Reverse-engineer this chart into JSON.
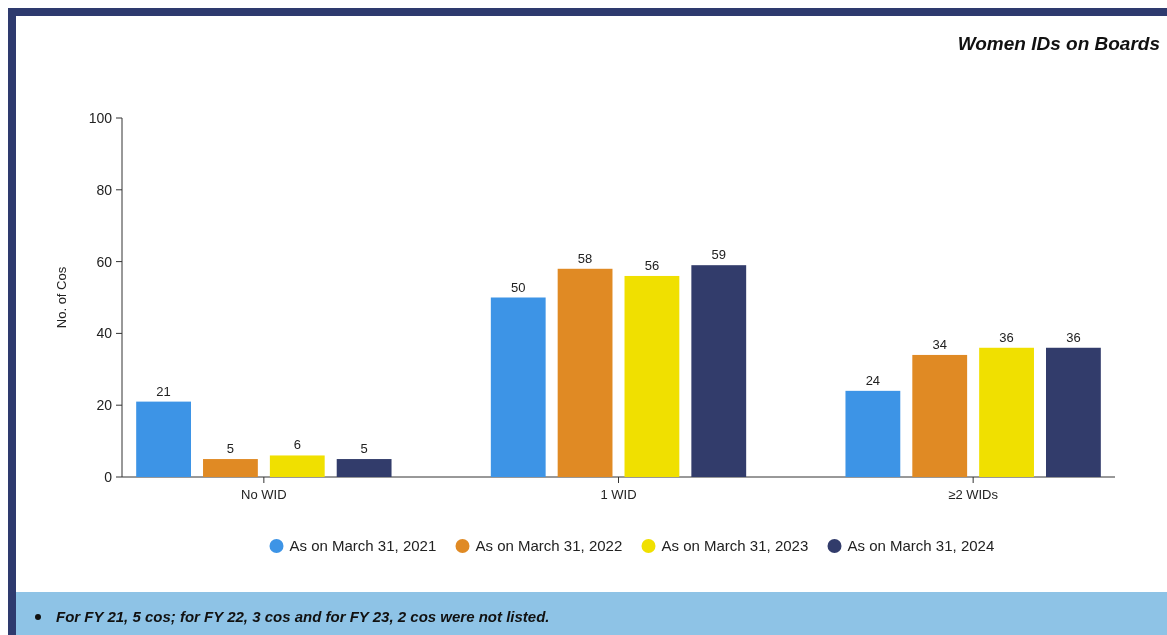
{
  "chart_data": {
    "type": "bar",
    "title": "Women IDs on Boards",
    "ylabel": "No. of Cos",
    "categories": [
      "No WID",
      "1 WID",
      "≥2 WIDs"
    ],
    "series": [
      {
        "name": "As on March 31, 2021",
        "color": "#3d94e6",
        "values": [
          21,
          50,
          24
        ]
      },
      {
        "name": "As on March 31, 2022",
        "color": "#e08a24",
        "values": [
          5,
          58,
          34
        ]
      },
      {
        "name": "As on March 31, 2023",
        "color": "#f0e000",
        "values": [
          6,
          56,
          36
        ]
      },
      {
        "name": "As on March 31, 2024",
        "color": "#323c6b",
        "values": [
          5,
          59,
          36
        ]
      }
    ],
    "ylim": [
      0,
      100
    ],
    "yticks": [
      0,
      20,
      40,
      60,
      80,
      100
    ],
    "grid": false,
    "legend": "bottom",
    "data_labels": true,
    "annotations": [
      "For FY 21, 5 cos; for FY 22, 3 cos and for FY 23, 2 cos were not listed."
    ]
  }
}
